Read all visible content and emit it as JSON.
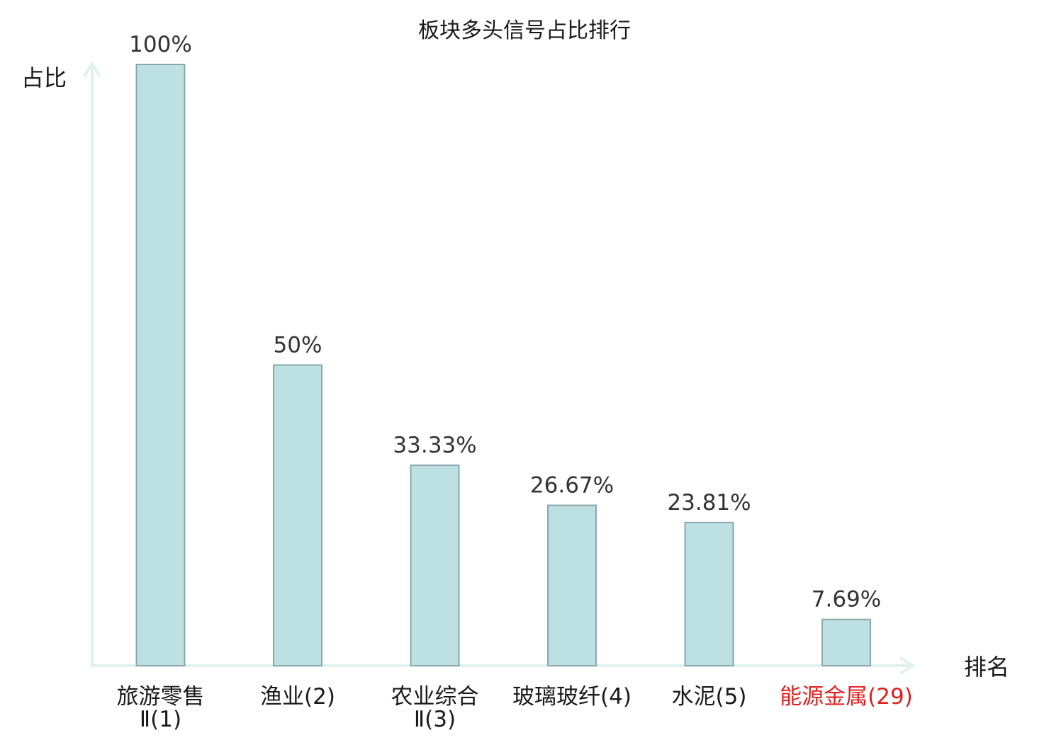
{
  "chart_data": {
    "type": "bar",
    "title": "板块多头信号占比排行",
    "xlabel": "排名",
    "ylabel": "占比",
    "unit": "%",
    "categories": [
      [
        "旅游零售",
        "Ⅱ(1)"
      ],
      [
        "渔业(2)"
      ],
      [
        "农业综合",
        "Ⅱ(3)"
      ],
      [
        "玻璃玻纤(4)"
      ],
      [
        "水泥(5)"
      ],
      [
        "能源金属(29)"
      ]
    ],
    "values": [
      100,
      50,
      33.33,
      26.67,
      23.81,
      7.69
    ],
    "value_labels": [
      "100%",
      "50%",
      "33.33%",
      "26.67%",
      "23.81%",
      "7.69%"
    ],
    "highlight_index": 5,
    "ylim": [
      0,
      100
    ],
    "grid": false,
    "colors": {
      "bar_fill": "#bde0e3",
      "bar_stroke": "#8aa8ab",
      "axis": "#e0f1ee",
      "highlight_text": "#e02020",
      "text": "#1a1a1a",
      "value_text": "#333333"
    }
  }
}
